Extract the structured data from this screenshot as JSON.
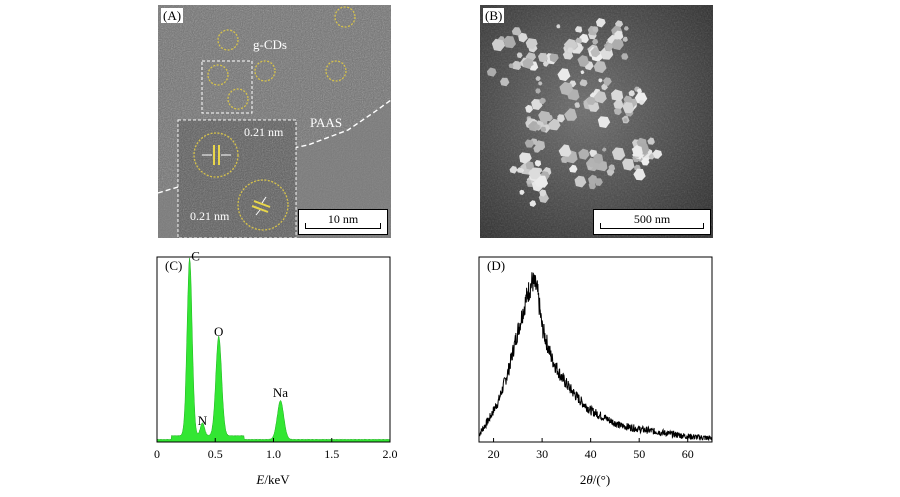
{
  "panels": {
    "A": {
      "label": "(A)",
      "annotations": {
        "gcds": "g-CDs",
        "paas": "PAAS",
        "spacing_top": "0.21 nm",
        "spacing_bottom": "0.21 nm"
      },
      "scale_bar": "10 nm"
    },
    "B": {
      "label": "(B)",
      "scale_bar": "500 nm"
    },
    "C": {
      "label": "(C)",
      "xlabel_italic": "E",
      "xlabel_rest": "/keV",
      "xticks": [
        "0",
        "0.5",
        "1.0",
        "1.5",
        "2.0"
      ]
    },
    "D": {
      "label": "(D)",
      "xlabel_pre": "2",
      "xlabel_italic": "θ",
      "xlabel_rest": "/(°)",
      "xticks": [
        "20",
        "30",
        "40",
        "50",
        "60"
      ]
    }
  },
  "colors": {
    "eds_fill": "#33e633",
    "xrd_line": "#000000",
    "circle": "#d6c24a"
  },
  "chart_data": [
    {
      "type": "area",
      "panel": "C",
      "xlim": [
        0,
        2.0
      ],
      "ylim": [
        0,
        1
      ],
      "peaks": [
        {
          "label": "C",
          "x": 0.28,
          "height": 0.96
        },
        {
          "label": "N",
          "x": 0.39,
          "height": 0.07
        },
        {
          "label": "O",
          "x": 0.53,
          "height": 0.54
        },
        {
          "label": "Na",
          "x": 1.06,
          "height": 0.21
        }
      ]
    },
    {
      "type": "line",
      "panel": "D",
      "xlim": [
        17,
        65
      ],
      "ylim": [
        0,
        1
      ],
      "x": [
        17,
        19,
        21,
        23,
        25,
        27,
        28,
        29,
        30,
        32,
        34,
        36,
        38,
        40,
        43,
        46,
        50,
        55,
        60,
        65
      ],
      "y": [
        0.04,
        0.12,
        0.22,
        0.38,
        0.6,
        0.8,
        0.87,
        0.82,
        0.62,
        0.45,
        0.35,
        0.28,
        0.22,
        0.17,
        0.13,
        0.09,
        0.07,
        0.05,
        0.03,
        0.02
      ]
    }
  ]
}
